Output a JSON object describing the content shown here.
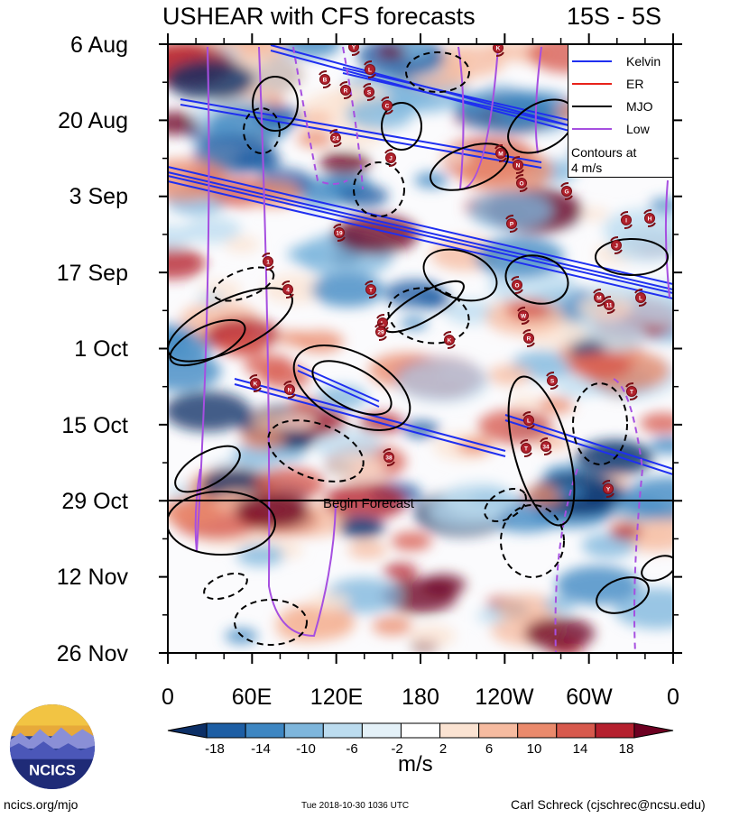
{
  "title": "USHEAR with CFS forecasts",
  "region": "15S - 5S",
  "y_ticks": [
    "6 Aug",
    "20 Aug",
    "3 Sep",
    "17 Sep",
    "1 Oct",
    "15 Oct",
    "29 Oct",
    "12 Nov",
    "26 Nov"
  ],
  "x_ticks": [
    "0",
    "60E",
    "120E",
    "180",
    "120W",
    "60W",
    "0"
  ],
  "legend": {
    "items": [
      {
        "label": "Kelvin",
        "color": "#1f2ff0"
      },
      {
        "label": "ER",
        "color": "#e8231b"
      },
      {
        "label": "MJO",
        "color": "#000000"
      },
      {
        "label": "Low",
        "color": "#a64fe0"
      }
    ],
    "note_line1": "Contours at",
    "note_line2": "4 m/s"
  },
  "forecast_label": "Begin Forecast",
  "colorbar": {
    "labels": [
      "-18",
      "-14",
      "-10",
      "-6",
      "-2",
      "2",
      "6",
      "10",
      "14",
      "18"
    ],
    "colors": [
      "#0c2f66",
      "#1d5ea4",
      "#3d86c2",
      "#7eb6dc",
      "#bcdcef",
      "#e4f1f8",
      "#ffffff",
      "#fbe3d2",
      "#f6bba0",
      "#ea8a6c",
      "#d7594d",
      "#b5202e",
      "#6d0021"
    ],
    "units": "m/s"
  },
  "logo_text": "NCICS",
  "footer": {
    "left": "ncics.org/mjo",
    "middle": "Tue 2018-10-30 1036 UTC",
    "right": "Carl Schreck (cjschrec@ncsu.edu)"
  },
  "storm_labels": [
    "Y",
    "K",
    "L",
    "B",
    "R",
    "S",
    "C",
    "24",
    "J",
    "M",
    "N",
    "O",
    "G",
    "H",
    "I",
    "P",
    "J",
    "1",
    "4",
    "T",
    "L",
    "29",
    "K",
    "W",
    "R",
    "S",
    "M",
    "11",
    "L",
    "K",
    "L",
    "T",
    "N",
    "T",
    "34",
    "38",
    "Y",
    "O",
    "19",
    "B"
  ],
  "chart_data": {
    "type": "heatmap",
    "title": "USHEAR with CFS forecasts",
    "subtitle": "15S - 5S",
    "x_axis": {
      "ticks": [
        "0",
        "60E",
        "120E",
        "180",
        "120W",
        "60W",
        "0"
      ],
      "range": [
        "0",
        "0"
      ]
    },
    "y_axis": {
      "ticks": [
        "6 Aug",
        "20 Aug",
        "3 Sep",
        "17 Sep",
        "1 Oct",
        "15 Oct",
        "29 Oct",
        "12 Nov",
        "26 Nov"
      ],
      "range": [
        "6 Aug",
        "26 Nov"
      ]
    },
    "value_units": "m/s",
    "colorbar_levels": [
      -18,
      -14,
      -10,
      -6,
      -2,
      2,
      6,
      10,
      14,
      18
    ],
    "contour_interval": "4 m/s",
    "series": [
      {
        "name": "Kelvin",
        "color": "#1f2ff0"
      },
      {
        "name": "ER",
        "color": "#e8231b"
      },
      {
        "name": "MJO",
        "color": "#000000"
      },
      {
        "name": "Low",
        "color": "#a64fe0"
      }
    ],
    "forecast_start": "29 Oct",
    "grid": false,
    "legend_position": "top-right"
  }
}
